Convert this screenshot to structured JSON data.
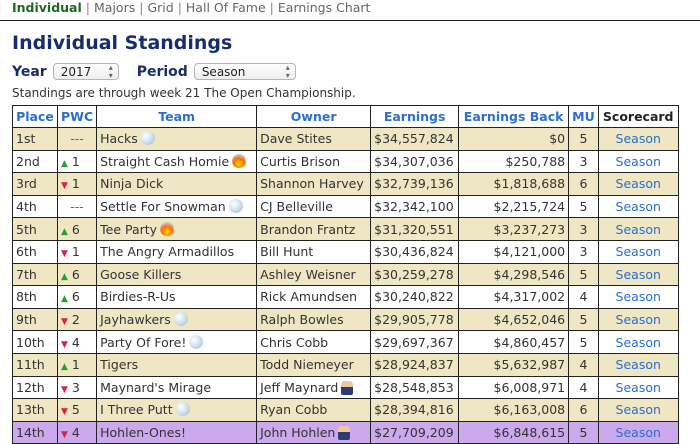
{
  "nav": {
    "items": [
      {
        "label": "Individual",
        "active": true
      },
      {
        "label": "Majors",
        "active": false
      },
      {
        "label": "Grid",
        "active": false
      },
      {
        "label": "Hall Of Fame",
        "active": false
      },
      {
        "label": "Earnings Chart",
        "active": false
      }
    ],
    "separator": "|"
  },
  "page": {
    "title": "Individual Standings",
    "year_label": "Year",
    "year_value": "2017",
    "period_label": "Period",
    "period_value": "Season",
    "note": "Standings are through week 21 The Open Championship."
  },
  "table": {
    "headers": [
      "Place",
      "PWC",
      "Team",
      "Owner",
      "Earnings",
      "Earnings Back",
      "MU",
      "Scorecard"
    ],
    "rows": [
      {
        "place": "1st",
        "pwc_dir": "none",
        "pwc": "---",
        "team": "Hacks",
        "team_icon": "ball",
        "owner": "Dave Stites",
        "owner_icon": "",
        "earnings": "$34,557,824",
        "back": "$0",
        "mu": "5",
        "scorecard": "Season",
        "style": "odd"
      },
      {
        "place": "2nd",
        "pwc_dir": "up",
        "pwc": "1",
        "team": "Straight Cash Homie",
        "team_icon": "fire",
        "owner": "Curtis Brison",
        "owner_icon": "",
        "earnings": "$34,307,036",
        "back": "$250,788",
        "mu": "3",
        "scorecard": "Season",
        "style": "even"
      },
      {
        "place": "3rd",
        "pwc_dir": "down",
        "pwc": "1",
        "team": "Ninja Dick",
        "team_icon": "",
        "owner": "Shannon Harvey",
        "owner_icon": "",
        "earnings": "$32,739,136",
        "back": "$1,818,688",
        "mu": "6",
        "scorecard": "Season",
        "style": "odd"
      },
      {
        "place": "4th",
        "pwc_dir": "none",
        "pwc": "---",
        "team": "Settle For Snowman",
        "team_icon": "ball",
        "owner": "CJ Belleville",
        "owner_icon": "",
        "earnings": "$32,342,100",
        "back": "$2,215,724",
        "mu": "5",
        "scorecard": "Season",
        "style": "even"
      },
      {
        "place": "5th",
        "pwc_dir": "up",
        "pwc": "6",
        "team": "Tee Party",
        "team_icon": "fire",
        "owner": "Brandon Frantz",
        "owner_icon": "",
        "earnings": "$31,320,551",
        "back": "$3,237,273",
        "mu": "3",
        "scorecard": "Season",
        "style": "odd"
      },
      {
        "place": "6th",
        "pwc_dir": "down",
        "pwc": "1",
        "team": "The Angry Armadillos",
        "team_icon": "",
        "owner": "Bill Hunt",
        "owner_icon": "",
        "earnings": "$30,436,824",
        "back": "$4,121,000",
        "mu": "3",
        "scorecard": "Season",
        "style": "even"
      },
      {
        "place": "7th",
        "pwc_dir": "up",
        "pwc": "6",
        "team": "Goose Killers",
        "team_icon": "",
        "owner": "Ashley Weisner",
        "owner_icon": "",
        "earnings": "$30,259,278",
        "back": "$4,298,546",
        "mu": "5",
        "scorecard": "Season",
        "style": "odd"
      },
      {
        "place": "8th",
        "pwc_dir": "up",
        "pwc": "6",
        "team": "Birdies-R-Us",
        "team_icon": "",
        "owner": "Rick Amundsen",
        "owner_icon": "",
        "earnings": "$30,240,822",
        "back": "$4,317,002",
        "mu": "4",
        "scorecard": "Season",
        "style": "even"
      },
      {
        "place": "9th",
        "pwc_dir": "down",
        "pwc": "2",
        "team": "Jayhawkers",
        "team_icon": "ball",
        "owner": "Ralph Bowles",
        "owner_icon": "",
        "earnings": "$29,905,778",
        "back": "$4,652,046",
        "mu": "5",
        "scorecard": "Season",
        "style": "odd"
      },
      {
        "place": "10th",
        "pwc_dir": "down",
        "pwc": "4",
        "team": "Party Of Fore!",
        "team_icon": "ball",
        "owner": "Chris Cobb",
        "owner_icon": "",
        "earnings": "$29,697,367",
        "back": "$4,860,457",
        "mu": "5",
        "scorecard": "Season",
        "style": "even"
      },
      {
        "place": "11th",
        "pwc_dir": "up",
        "pwc": "1",
        "team": "Tigers",
        "team_icon": "",
        "owner": "Todd Niemeyer",
        "owner_icon": "",
        "earnings": "$28,924,837",
        "back": "$5,632,987",
        "mu": "4",
        "scorecard": "Season",
        "style": "odd"
      },
      {
        "place": "12th",
        "pwc_dir": "down",
        "pwc": "3",
        "team": "Maynard's Mirage",
        "team_icon": "",
        "owner": "Jeff Maynard",
        "owner_icon": "person",
        "earnings": "$28,548,853",
        "back": "$6,008,971",
        "mu": "4",
        "scorecard": "Season",
        "style": "even"
      },
      {
        "place": "13th",
        "pwc_dir": "down",
        "pwc": "5",
        "team": "I Three Putt",
        "team_icon": "ball",
        "owner": "Ryan Cobb",
        "owner_icon": "",
        "earnings": "$28,394,816",
        "back": "$6,163,008",
        "mu": "6",
        "scorecard": "Season",
        "style": "odd"
      },
      {
        "place": "14th",
        "pwc_dir": "down",
        "pwc": "4",
        "team": "Hohlen-Ones!",
        "team_icon": "",
        "owner": "John Hohlen",
        "owner_icon": "person",
        "earnings": "$27,709,209",
        "back": "$6,848,615",
        "mu": "5",
        "scorecard": "Season",
        "style": "hl"
      }
    ]
  },
  "colors": {
    "nav_active": "#1d6a1f",
    "title": "#1a2d6b",
    "link": "#2a6fd1",
    "row_odd": "#efe6c4",
    "row_even": "#ffffff",
    "row_highlight": "#cba9ec",
    "up_arrow": "#2aa02a",
    "down_arrow": "#d8224a"
  }
}
